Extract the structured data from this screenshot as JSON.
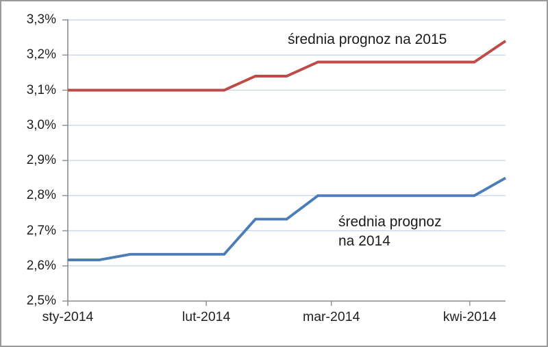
{
  "chart_data": {
    "type": "line",
    "title": "",
    "x_axis": {
      "ticks": [
        {
          "label": "sty-2014",
          "day": 0
        },
        {
          "label": "lut-2014",
          "day": 31
        },
        {
          "label": "mar-2014",
          "day": 59
        },
        {
          "label": "kwi-2014",
          "day": 90
        }
      ],
      "span_days": [
        0,
        98
      ],
      "point_interval_days": 7
    },
    "y_axis": {
      "ticks": [
        {
          "label": "2,5%",
          "value": 2.5
        },
        {
          "label": "2,6%",
          "value": 2.6
        },
        {
          "label": "2,7%",
          "value": 2.7
        },
        {
          "label": "2,8%",
          "value": 2.8
        },
        {
          "label": "2,9%",
          "value": 2.9
        },
        {
          "label": "3,0%",
          "value": 3.0
        },
        {
          "label": "3,1%",
          "value": 3.1
        },
        {
          "label": "3,2%",
          "value": 3.2
        },
        {
          "label": "3,3%",
          "value": 3.3
        }
      ],
      "range": [
        2.5,
        3.3
      ]
    },
    "grid": true,
    "legend_position": "inline-annotations",
    "series": [
      {
        "name": "średnia prognoz na 2015",
        "color": "#BE4B48",
        "values": [
          3.1,
          3.1,
          3.1,
          3.1,
          3.1,
          3.1,
          3.14,
          3.14,
          3.18,
          3.18,
          3.18,
          3.18,
          3.18,
          3.18,
          3.24
        ]
      },
      {
        "name": "średnia prognoz na 2014",
        "color": "#4B7DB9",
        "values": [
          2.617,
          2.617,
          2.633,
          2.633,
          2.633,
          2.633,
          2.733,
          2.733,
          2.8,
          2.8,
          2.8,
          2.8,
          2.8,
          2.8,
          2.85
        ]
      }
    ],
    "annotations": [
      {
        "lines": [
          "średnia prognoz na 2015"
        ],
        "series": "2015"
      },
      {
        "lines": [
          "średnia prognoz",
          "na 2014"
        ],
        "series": "2014"
      }
    ]
  },
  "colors": {
    "series_2015": "#BE4B48",
    "series_2014": "#4B7DB9",
    "gridline": "#C4D2EB",
    "axis": "#8C8C8C",
    "text": "#1F1F1F",
    "frame_border": "#9A9A9A",
    "background": "#FFFFFF"
  }
}
